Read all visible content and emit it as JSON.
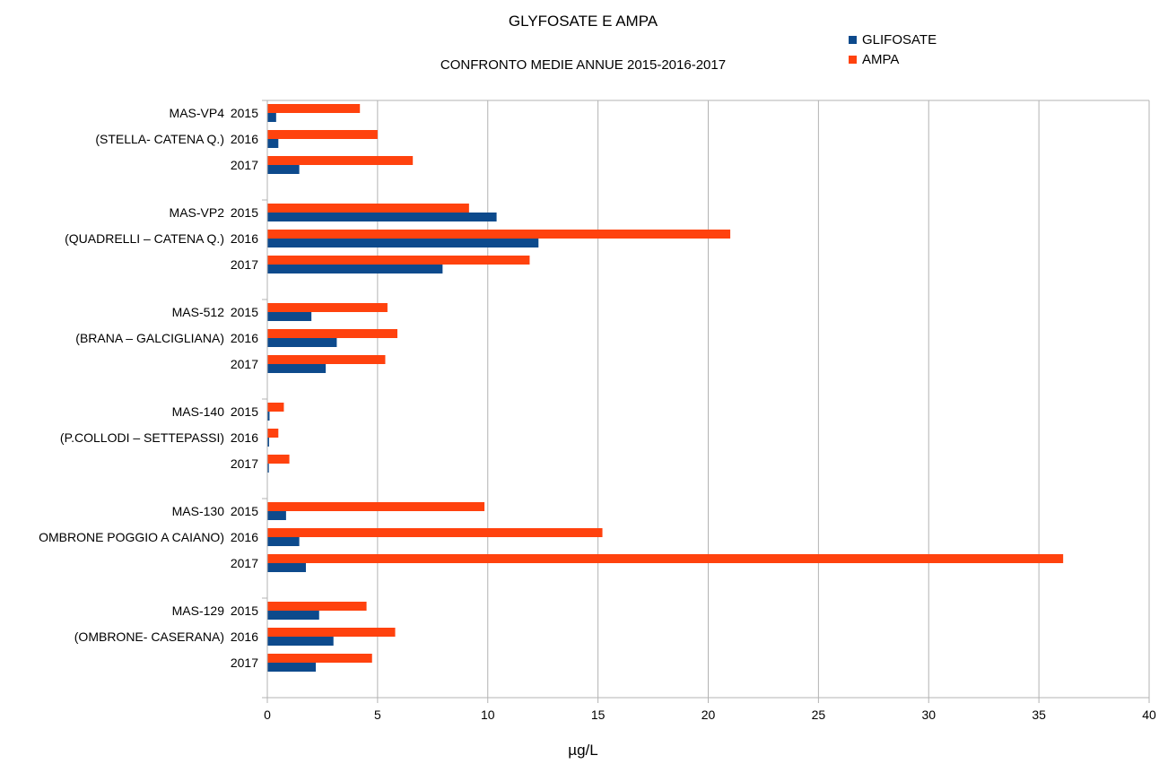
{
  "chart_data": {
    "type": "bar",
    "orientation": "horizontal",
    "title": "GLYFOSATE E AMPA",
    "subtitle": "CONFRONTO MEDIE ANNUE  2015-2016-2017",
    "xlabel": "µg/L",
    "ylabel": "",
    "xlim": [
      0,
      40
    ],
    "x_ticks": [
      "0",
      "5",
      "10",
      "15",
      "20",
      "25",
      "30",
      "35",
      "40"
    ],
    "grid": "vertical",
    "legend_position": "top-right",
    "series": [
      {
        "name": "GLIFOSATE",
        "color": "#0d4a8c"
      },
      {
        "name": "AMPA",
        "color": "#ff420e"
      }
    ],
    "groups": [
      {
        "rows": [
          {
            "year": "2015",
            "station": "MAS-VP4",
            "GLIFOSATE": 0.4,
            "AMPA": 4.2
          },
          {
            "year": "2016",
            "station": "(STELLA- CATENA Q.)",
            "GLIFOSATE": 0.5,
            "AMPA": 5.0
          },
          {
            "year": "2017",
            "station": "",
            "GLIFOSATE": 1.45,
            "AMPA": 6.6
          }
        ]
      },
      {
        "rows": [
          {
            "year": "2015",
            "station": "MAS-VP2",
            "GLIFOSATE": 10.4,
            "AMPA": 9.15
          },
          {
            "year": "2016",
            "station": "(QUADRELLI – CATENA Q.)",
            "GLIFOSATE": 12.3,
            "AMPA": 21.0
          },
          {
            "year": "2017",
            "station": "",
            "GLIFOSATE": 7.95,
            "AMPA": 11.9
          }
        ]
      },
      {
        "rows": [
          {
            "year": "2015",
            "station": "MAS-512",
            "GLIFOSATE": 2.0,
            "AMPA": 5.45
          },
          {
            "year": "2016",
            "station": "(BRANA – GALCIGLIANA)",
            "GLIFOSATE": 3.15,
            "AMPA": 5.9
          },
          {
            "year": "2017",
            "station": "",
            "GLIFOSATE": 2.65,
            "AMPA": 5.35
          }
        ]
      },
      {
        "rows": [
          {
            "year": "2015",
            "station": "MAS-140",
            "GLIFOSATE": 0.1,
            "AMPA": 0.75
          },
          {
            "year": "2016",
            "station": "(P.COLLODI – SETTEPASSI)",
            "GLIFOSATE": 0.08,
            "AMPA": 0.5
          },
          {
            "year": "2017",
            "station": "",
            "GLIFOSATE": 0.07,
            "AMPA": 1.0
          }
        ]
      },
      {
        "rows": [
          {
            "year": "2015",
            "station": "MAS-130",
            "GLIFOSATE": 0.85,
            "AMPA": 9.85
          },
          {
            "year": "2016",
            "station": "OMBRONE POGGIO A CAIANO)",
            "GLIFOSATE": 1.45,
            "AMPA": 15.2
          },
          {
            "year": "2017",
            "station": "",
            "GLIFOSATE": 1.75,
            "AMPA": 36.1
          }
        ]
      },
      {
        "rows": [
          {
            "year": "2015",
            "station": "MAS-129",
            "GLIFOSATE": 2.35,
            "AMPA": 4.5
          },
          {
            "year": "2016",
            "station": "(OMBRONE- CASERANA)",
            "GLIFOSATE": 3.0,
            "AMPA": 5.8
          },
          {
            "year": "2017",
            "station": "",
            "GLIFOSATE": 2.2,
            "AMPA": 4.75
          }
        ]
      }
    ]
  }
}
